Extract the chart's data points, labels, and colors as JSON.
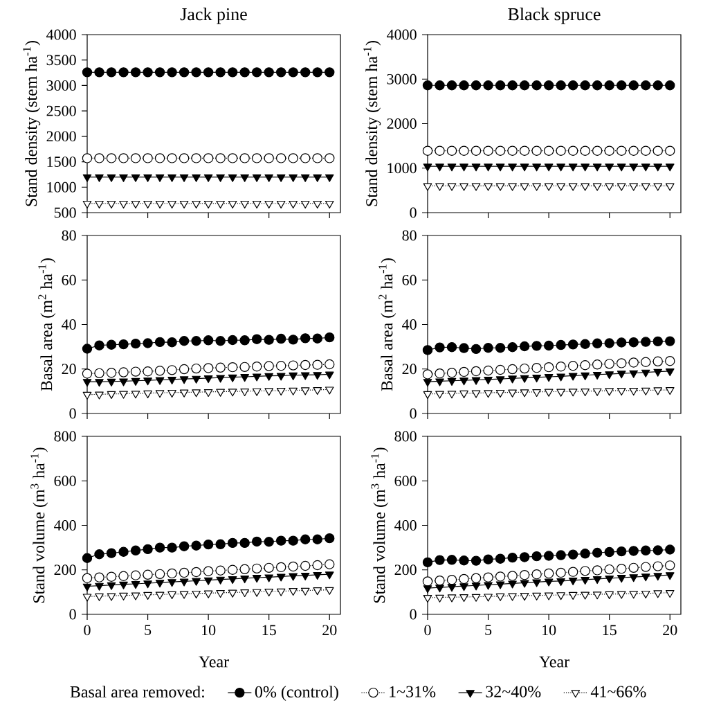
{
  "chart_data": [
    {
      "type": "line",
      "title": "Jack pine",
      "ylabel": "Stand density (stem ha$^{-1}$)",
      "x": [
        0,
        1,
        2,
        3,
        4,
        5,
        6,
        7,
        8,
        9,
        10,
        11,
        12,
        13,
        14,
        15,
        16,
        17,
        18,
        19,
        20
      ],
      "xlim": [
        0,
        20.9
      ],
      "xticks": [
        0,
        5,
        10,
        15,
        20
      ],
      "ylim": [
        500,
        4000
      ],
      "yticks": [
        500,
        1000,
        1500,
        2000,
        2500,
        3000,
        3500,
        4000
      ],
      "tick_labels": "y",
      "series": [
        {
          "color": "#000000",
          "marker": "circle",
          "line_style": "solid",
          "values": [
            3260,
            3260,
            3260,
            3260,
            3260,
            3260,
            3260,
            3260,
            3260,
            3260,
            3260,
            3260,
            3260,
            3260,
            3260,
            3260,
            3260,
            3260,
            3260,
            3260,
            3260
          ]
        },
        {
          "color": "#ffffff",
          "marker": "circle",
          "line_style": "dotted",
          "values": [
            1570,
            1570,
            1570,
            1570,
            1570,
            1570,
            1570,
            1570,
            1570,
            1570,
            1570,
            1570,
            1570,
            1570,
            1570,
            1570,
            1570,
            1570,
            1570,
            1570,
            1570
          ]
        },
        {
          "color": "#000000",
          "marker": "triangle",
          "line_style": "solid",
          "values": [
            1200,
            1200,
            1200,
            1200,
            1200,
            1200,
            1200,
            1200,
            1200,
            1200,
            1200,
            1200,
            1200,
            1200,
            1200,
            1200,
            1200,
            1200,
            1200,
            1200,
            1200
          ]
        },
        {
          "color": "#ffffff",
          "marker": "triangle",
          "line_style": "dotted",
          "values": [
            680,
            680,
            680,
            680,
            680,
            680,
            680,
            680,
            680,
            680,
            680,
            680,
            680,
            680,
            680,
            680,
            680,
            680,
            680,
            680,
            680
          ]
        }
      ]
    },
    {
      "type": "line",
      "title": "Black spruce",
      "ylabel": "Stand density (stem ha$^{-1}$)",
      "x": [
        0,
        1,
        2,
        3,
        4,
        5,
        6,
        7,
        8,
        9,
        10,
        11,
        12,
        13,
        14,
        15,
        16,
        17,
        18,
        19,
        20
      ],
      "xlim": [
        0,
        20.9
      ],
      "xticks": [
        0,
        5,
        10,
        15,
        20
      ],
      "ylim": [
        0,
        4000
      ],
      "yticks": [
        0,
        1000,
        2000,
        3000,
        4000
      ],
      "tick_labels": "y",
      "series": [
        {
          "color": "#000000",
          "marker": "circle",
          "line_style": "solid",
          "values": [
            2860,
            2860,
            2860,
            2860,
            2860,
            2860,
            2860,
            2860,
            2860,
            2860,
            2860,
            2860,
            2860,
            2860,
            2860,
            2860,
            2860,
            2860,
            2860,
            2860,
            2860
          ]
        },
        {
          "color": "#ffffff",
          "marker": "circle",
          "line_style": "dotted",
          "values": [
            1390,
            1390,
            1390,
            1390,
            1390,
            1390,
            1390,
            1390,
            1390,
            1390,
            1390,
            1390,
            1390,
            1390,
            1390,
            1390,
            1390,
            1390,
            1390,
            1390,
            1390
          ]
        },
        {
          "color": "#000000",
          "marker": "triangle",
          "line_style": "solid",
          "values": [
            1040,
            1040,
            1040,
            1040,
            1040,
            1040,
            1040,
            1040,
            1040,
            1040,
            1040,
            1040,
            1040,
            1040,
            1040,
            1040,
            1040,
            1040,
            1040,
            1040,
            1040
          ]
        },
        {
          "color": "#ffffff",
          "marker": "triangle",
          "line_style": "dotted",
          "values": [
            600,
            600,
            600,
            600,
            600,
            600,
            600,
            600,
            600,
            600,
            600,
            600,
            600,
            600,
            600,
            600,
            600,
            600,
            600,
            600,
            600
          ]
        }
      ]
    },
    {
      "type": "line",
      "ylabel": "Basal area (m$^{2}$ ha$^{-1}$)",
      "x": [
        0,
        1,
        2,
        3,
        4,
        5,
        6,
        7,
        8,
        9,
        10,
        11,
        12,
        13,
        14,
        15,
        16,
        17,
        18,
        19,
        20
      ],
      "xlim": [
        0,
        20.9
      ],
      "xticks": [
        0,
        5,
        10,
        15,
        20
      ],
      "ylim": [
        0,
        80
      ],
      "yticks": [
        0,
        20,
        40,
        60,
        80
      ],
      "tick_labels": "y",
      "series": [
        {
          "color": "#000000",
          "marker": "circle",
          "line_style": "solid",
          "values": [
            29.1,
            30.6,
            30.9,
            31.1,
            31.4,
            31.6,
            32.1,
            32.0,
            32.6,
            32.6,
            32.9,
            32.6,
            33.0,
            32.9,
            33.4,
            33.1,
            33.6,
            33.2,
            33.8,
            33.7,
            34.2
          ]
        },
        {
          "color": "#ffffff",
          "marker": "circle",
          "line_style": "dotted",
          "values": [
            17.9,
            18.1,
            18.3,
            18.5,
            18.8,
            18.9,
            19.2,
            19.5,
            19.9,
            20.2,
            20.4,
            20.6,
            20.8,
            20.9,
            21.1,
            21.3,
            21.4,
            21.6,
            21.8,
            21.9,
            22.1
          ]
        },
        {
          "color": "#000000",
          "marker": "triangle",
          "line_style": "solid",
          "values": [
            14.3,
            14.3,
            14.4,
            14.5,
            14.7,
            14.9,
            15.1,
            15.3,
            15.5,
            15.7,
            15.9,
            16.1,
            16.3,
            16.5,
            16.7,
            16.9,
            17.0,
            17.2,
            17.3,
            17.4,
            17.6
          ]
        },
        {
          "color": "#ffffff",
          "marker": "triangle",
          "line_style": "dotted",
          "values": [
            8.5,
            8.6,
            8.8,
            8.9,
            9.0,
            9.1,
            9.3,
            9.4,
            9.5,
            9.6,
            9.7,
            9.8,
            9.9,
            10.0,
            10.1,
            10.2,
            10.3,
            10.4,
            10.5,
            10.6,
            10.8
          ]
        }
      ]
    },
    {
      "type": "line",
      "ylabel": "Basal area (m$^{2}$ ha$^{-1}$)",
      "x": [
        0,
        1,
        2,
        3,
        4,
        5,
        6,
        7,
        8,
        9,
        10,
        11,
        12,
        13,
        14,
        15,
        16,
        17,
        18,
        19,
        20
      ],
      "xlim": [
        0,
        20.9
      ],
      "xticks": [
        0,
        5,
        10,
        15,
        20
      ],
      "ylim": [
        0,
        80
      ],
      "yticks": [
        0,
        20,
        40,
        60,
        80
      ],
      "tick_labels": "y",
      "series": [
        {
          "color": "#000000",
          "marker": "circle",
          "line_style": "solid",
          "values": [
            28.5,
            29.7,
            29.8,
            29.4,
            29.0,
            29.5,
            29.5,
            29.8,
            30.2,
            30.4,
            30.5,
            30.8,
            31.0,
            31.2,
            31.5,
            31.6,
            31.9,
            32.0,
            32.2,
            32.4,
            32.5
          ]
        },
        {
          "color": "#ffffff",
          "marker": "circle",
          "line_style": "dotted",
          "values": [
            17.6,
            18.0,
            18.3,
            18.7,
            19.0,
            19.3,
            19.6,
            19.9,
            20.2,
            20.5,
            20.8,
            21.1,
            21.4,
            21.7,
            22.0,
            22.3,
            22.6,
            22.9,
            23.1,
            23.4,
            23.6
          ]
        },
        {
          "color": "#000000",
          "marker": "triangle",
          "line_style": "solid",
          "values": [
            14.3,
            14.5,
            14.7,
            14.9,
            15.1,
            15.3,
            15.5,
            15.8,
            16.0,
            16.2,
            16.5,
            16.7,
            17.0,
            17.2,
            17.5,
            17.7,
            18.0,
            18.2,
            18.5,
            18.8,
            19.0
          ]
        },
        {
          "color": "#ffffff",
          "marker": "triangle",
          "line_style": "dotted",
          "values": [
            8.8,
            8.9,
            9.0,
            9.1,
            9.2,
            9.3,
            9.4,
            9.5,
            9.6,
            9.7,
            9.8,
            9.8,
            9.9,
            10.0,
            10.1,
            10.2,
            10.3,
            10.3,
            10.4,
            10.5,
            10.6
          ]
        }
      ]
    },
    {
      "type": "line",
      "ylabel": "Stand volume (m$^{3}$ ha$^{-1}$)",
      "xlabel": "Year",
      "x": [
        0,
        1,
        2,
        3,
        4,
        5,
        6,
        7,
        8,
        9,
        10,
        11,
        12,
        13,
        14,
        15,
        16,
        17,
        18,
        19,
        20
      ],
      "xlim": [
        0,
        20.9
      ],
      "xticks": [
        0,
        5,
        10,
        15,
        20
      ],
      "ylim": [
        0,
        800
      ],
      "yticks": [
        0,
        200,
        400,
        600,
        800
      ],
      "legend": "bottom",
      "legend_title": "Basal area removed:",
      "series": [
        {
          "name": "0% (control)",
          "color": "#000000",
          "marker": "circle",
          "line_style": "solid",
          "values": [
            253,
            270,
            275,
            281,
            287,
            293,
            300,
            300,
            306,
            309,
            314,
            315,
            321,
            321,
            327,
            326,
            331,
            331,
            337,
            337,
            342
          ]
        },
        {
          "name": "1~31%",
          "color": "#ffffff",
          "marker": "circle",
          "line_style": "dotted",
          "values": [
            163,
            166,
            169,
            172,
            175,
            178,
            181,
            184,
            187,
            190,
            194,
            197,
            200,
            203,
            206,
            209,
            212,
            215,
            218,
            221,
            225
          ]
        },
        {
          "name": "32~40%",
          "color": "#000000",
          "marker": "triangle",
          "line_style": "solid",
          "values": [
            126,
            129,
            132,
            135,
            137,
            140,
            143,
            146,
            148,
            151,
            154,
            157,
            159,
            162,
            165,
            167,
            170,
            173,
            175,
            178,
            180
          ]
        },
        {
          "name": "41~66%",
          "color": "#ffffff",
          "marker": "triangle",
          "line_style": "dotted",
          "values": [
            80,
            82,
            83,
            85,
            86,
            88,
            89,
            91,
            92,
            94,
            95,
            97,
            98,
            100,
            101,
            103,
            104,
            106,
            107,
            109,
            110
          ]
        }
      ]
    },
    {
      "type": "line",
      "ylabel": "Stand volume (m$^{3}$ ha$^{-1}$)",
      "xlabel": "Year",
      "x": [
        0,
        1,
        2,
        3,
        4,
        5,
        6,
        7,
        8,
        9,
        10,
        11,
        12,
        13,
        14,
        15,
        16,
        17,
        18,
        19,
        20
      ],
      "xlim": [
        0,
        20.9
      ],
      "xticks": [
        0,
        5,
        10,
        15,
        20
      ],
      "ylim": [
        0,
        800
      ],
      "yticks": [
        0,
        200,
        400,
        600,
        800
      ],
      "series": [
        {
          "color": "#000000",
          "marker": "circle",
          "line_style": "solid",
          "values": [
            234,
            244,
            245,
            242,
            241,
            247,
            250,
            255,
            257,
            261,
            263,
            266,
            269,
            273,
            277,
            280,
            283,
            285,
            287,
            288,
            291
          ]
        },
        {
          "color": "#ffffff",
          "marker": "circle",
          "line_style": "dotted",
          "values": [
            148,
            152,
            155,
            159,
            163,
            166,
            170,
            173,
            177,
            180,
            184,
            187,
            191,
            195,
            198,
            202,
            205,
            209,
            213,
            216,
            220
          ]
        },
        {
          "color": "#000000",
          "marker": "triangle",
          "line_style": "solid",
          "values": [
            118,
            121,
            124,
            127,
            130,
            133,
            136,
            139,
            142,
            145,
            148,
            150,
            153,
            156,
            159,
            162,
            165,
            168,
            171,
            174,
            177
          ]
        },
        {
          "color": "#ffffff",
          "marker": "triangle",
          "line_style": "dotted",
          "values": [
            75,
            76,
            77,
            78,
            79,
            80,
            82,
            83,
            84,
            85,
            86,
            87,
            88,
            89,
            90,
            91,
            92,
            93,
            94,
            96,
            97
          ]
        }
      ]
    }
  ]
}
